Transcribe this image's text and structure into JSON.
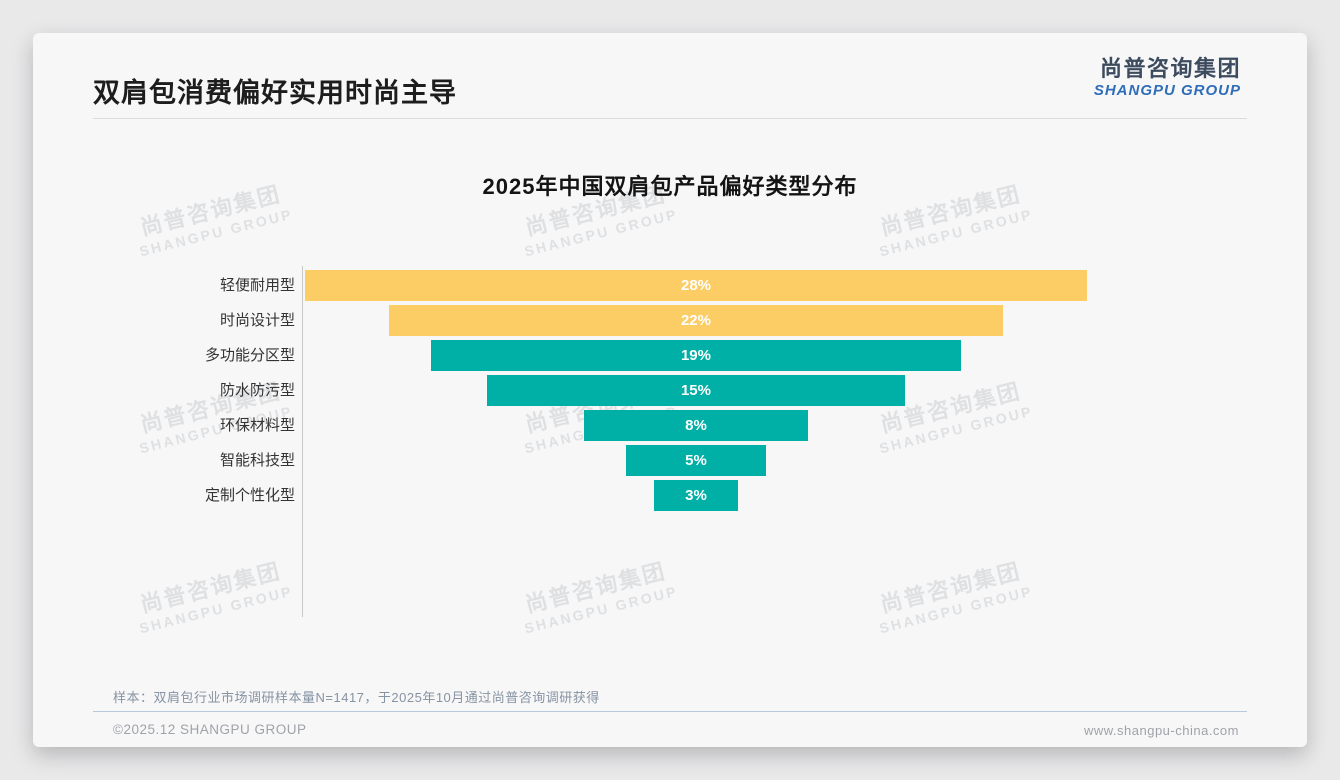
{
  "page": {
    "title": "双肩包消费偏好实用时尚主导",
    "logo": {
      "cn": "尚普咨询集团",
      "en": "SHANGPU GROUP"
    },
    "watermark": {
      "line1": "尚普咨询集团",
      "line2": "SHANGPU GROUP"
    },
    "footnote": "样本：双肩包行业市场调研样本量N=1417，于2025年10月通过尚普咨询调研获得",
    "footer": {
      "left": "©2025.12 SHANGPU GROUP",
      "right": "www.shangpu-china.com"
    }
  },
  "chart_data": {
    "type": "bar",
    "variant": "centered-funnel",
    "title": "2025年中国双肩包产品偏好类型分布",
    "categories": [
      "轻便耐用型",
      "时尚设计型",
      "多功能分区型",
      "防水防污型",
      "环保材料型",
      "智能科技型",
      "定制个性化型"
    ],
    "values": [
      28,
      22,
      19,
      15,
      8,
      5,
      3
    ],
    "unit": "%",
    "xmax": 28,
    "bar_colors": [
      "#FBCD64",
      "#FBCD64",
      "#00B0A7",
      "#00B0A7",
      "#00B0A7",
      "#00B0A7",
      "#00B0A7"
    ],
    "value_label_color": "#ffffff",
    "axis_line": true,
    "legend": "none",
    "grid": "off"
  }
}
